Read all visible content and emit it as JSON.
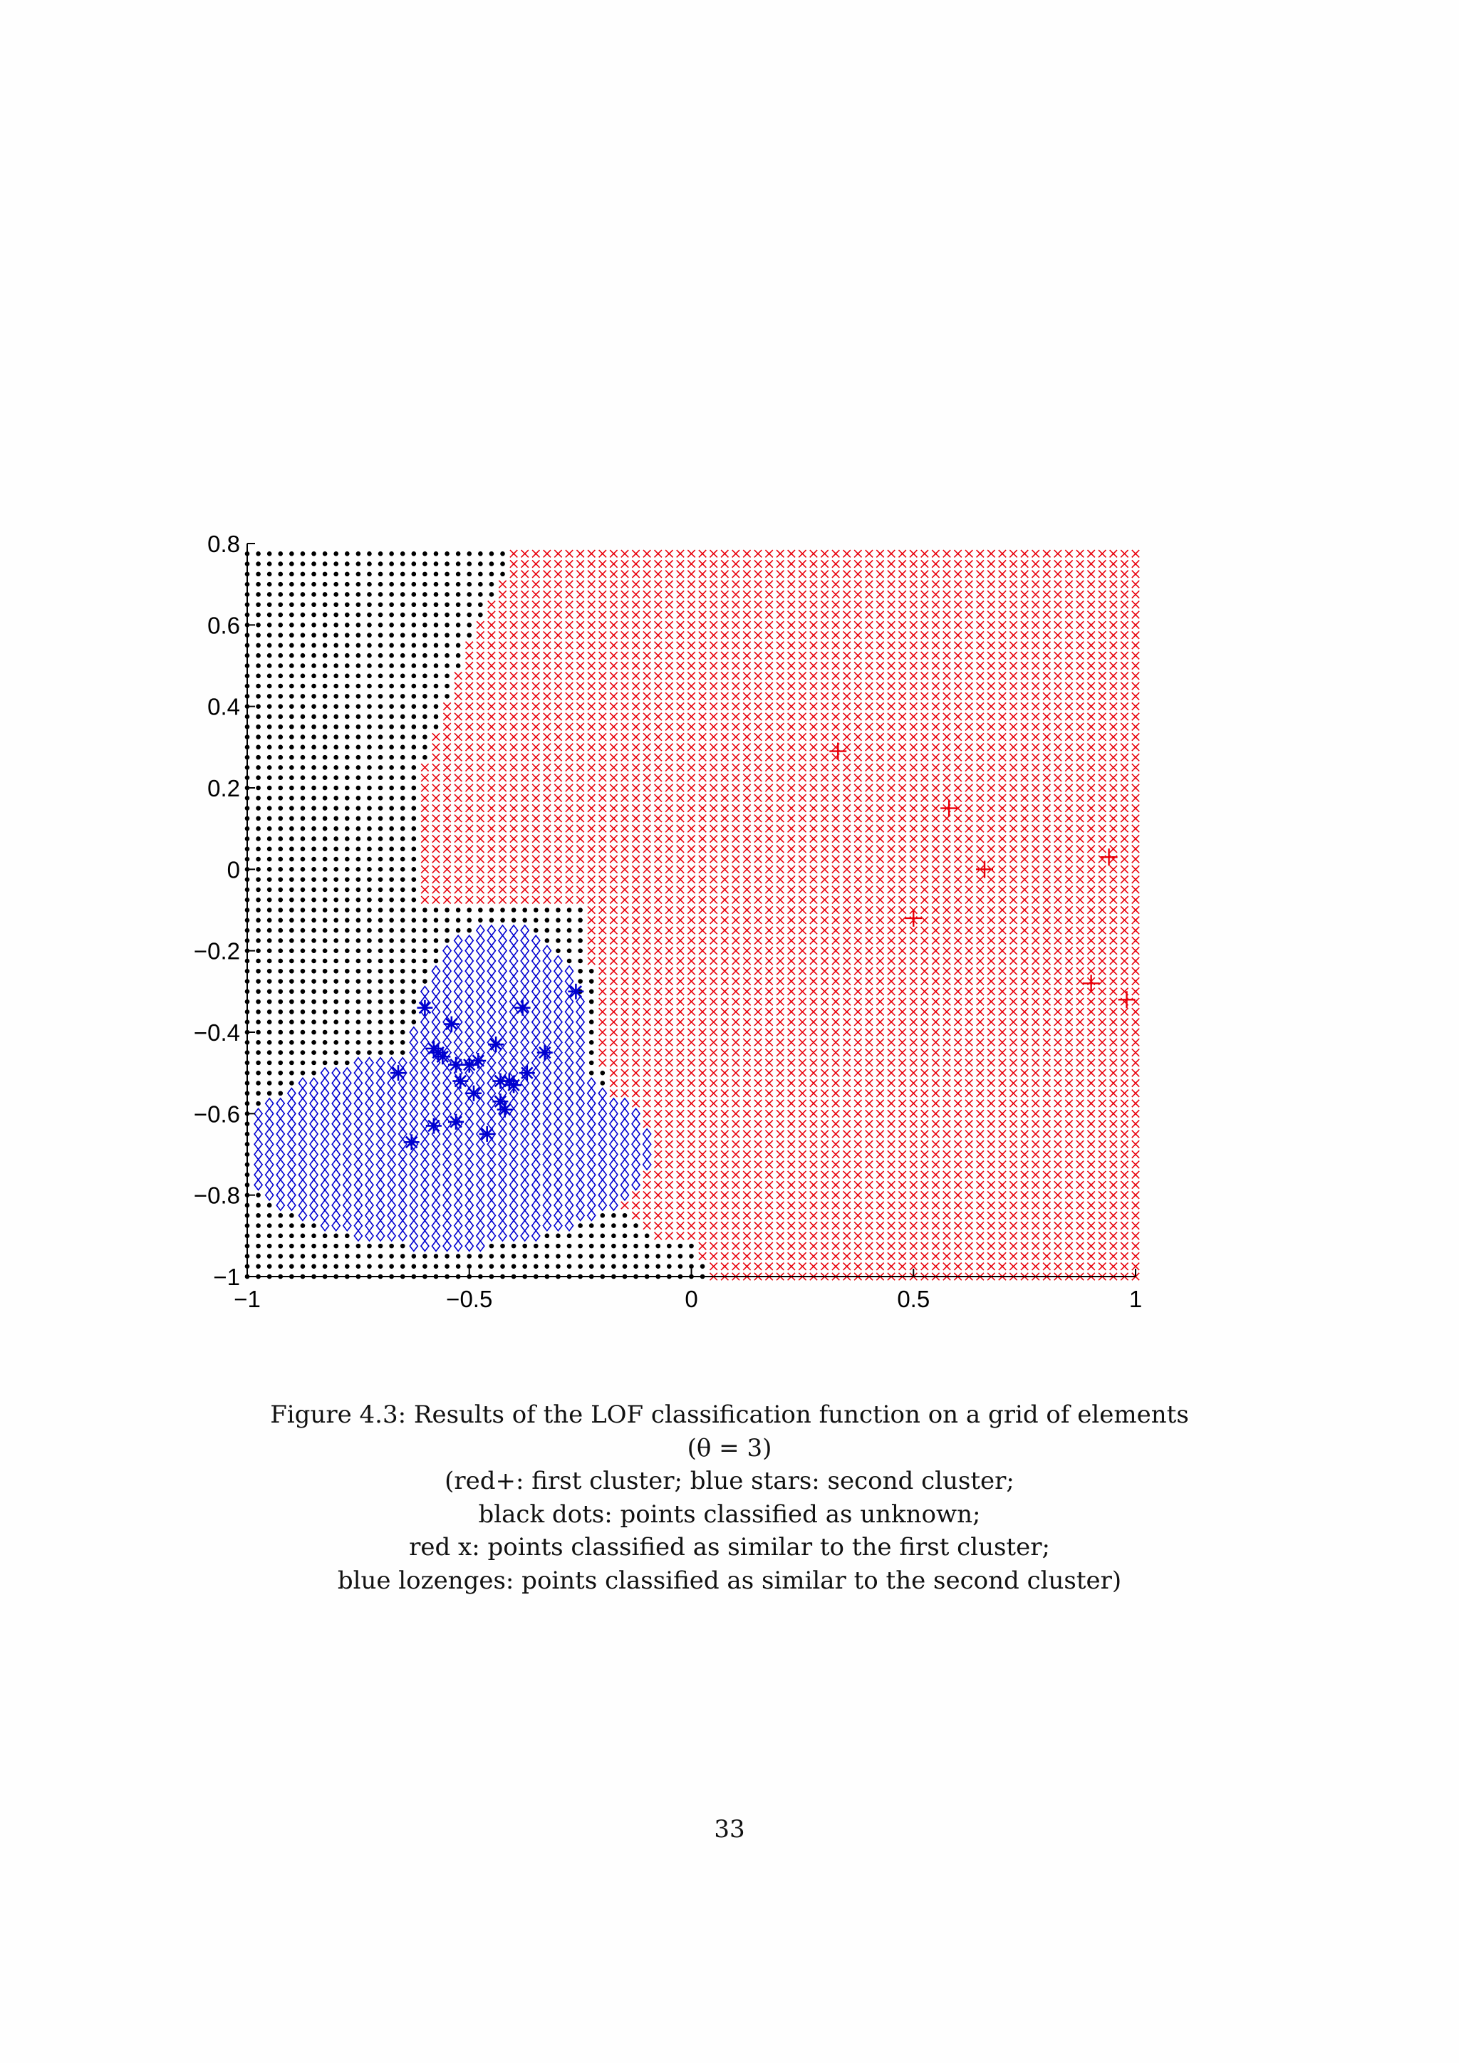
{
  "chart_data": {
    "type": "scatter",
    "title": "",
    "xlabel": "",
    "ylabel": "",
    "xlim": [
      -1,
      1
    ],
    "ylim": [
      -1,
      0.8
    ],
    "x_ticks": [
      "−1",
      "−0.5",
      "0",
      "0.5",
      "1"
    ],
    "y_ticks": [
      "0.8",
      "0.6",
      "0.4",
      "0.2",
      "0",
      "−0.2",
      "−0.4",
      "−0.6",
      "−0.8",
      "−1"
    ],
    "grid": false,
    "legend": "none",
    "grid_elements": {
      "x_range": [
        -1,
        1
      ],
      "y_range": [
        -1,
        0.78
      ],
      "step": 0.025,
      "classes": [
        {
          "class": "unknown",
          "marker": "dot",
          "color": "#000000"
        },
        {
          "class": "similar-to-first-cluster",
          "marker": "x",
          "color": "#e8000b"
        },
        {
          "class": "similar-to-second-cluster",
          "marker": "diamond",
          "color": "#0000d0"
        }
      ],
      "first_cluster_region_boundary": [
        [
          -0.6,
          -0.1
        ],
        [
          -0.6,
          0.25
        ],
        [
          -0.55,
          0.4
        ],
        [
          -0.5,
          0.55
        ],
        [
          -0.45,
          0.65
        ],
        [
          -0.4,
          0.78
        ]
      ],
      "second_cluster_region": "lower-left area, approx. x from -1 to -0.1, y from -0.92 to -0.1"
    },
    "series": [
      {
        "name": "first cluster",
        "marker": "+",
        "color": "#e8000b",
        "x": [
          0.33,
          0.58,
          0.66,
          0.5,
          0.94,
          0.9,
          0.98
        ],
        "y": [
          0.29,
          0.15,
          0.0,
          -0.12,
          0.03,
          -0.28,
          -0.32
        ]
      },
      {
        "name": "second cluster",
        "marker": "*",
        "color": "#0000d0",
        "x": [
          -0.6,
          -0.58,
          -0.57,
          -0.56,
          -0.54,
          -0.53,
          -0.52,
          -0.5,
          -0.49,
          -0.48,
          -0.46,
          -0.44,
          -0.43,
          -0.43,
          -0.42,
          -0.41,
          -0.4,
          -0.38,
          -0.37,
          -0.33,
          -0.26,
          -0.53,
          -0.58,
          -0.63,
          -0.66
        ],
        "y": [
          -0.34,
          -0.44,
          -0.45,
          -0.46,
          -0.38,
          -0.48,
          -0.52,
          -0.48,
          -0.55,
          -0.47,
          -0.65,
          -0.43,
          -0.52,
          -0.57,
          -0.59,
          -0.52,
          -0.53,
          -0.34,
          -0.5,
          -0.45,
          -0.3,
          -0.62,
          -0.63,
          -0.67,
          -0.5
        ]
      }
    ]
  },
  "caption": {
    "line1": "Figure 4.3: Results of the LOF classification function on a grid of elements",
    "line2": "(θ = 3)",
    "line3": "(red+: first cluster; blue stars: second cluster;",
    "line4": "black dots: points classified as unknown;",
    "line5": "red x: points classified as similar to the first cluster;",
    "line6": "blue lozenges: points classified as similar to the second cluster)"
  },
  "page_number": "33"
}
